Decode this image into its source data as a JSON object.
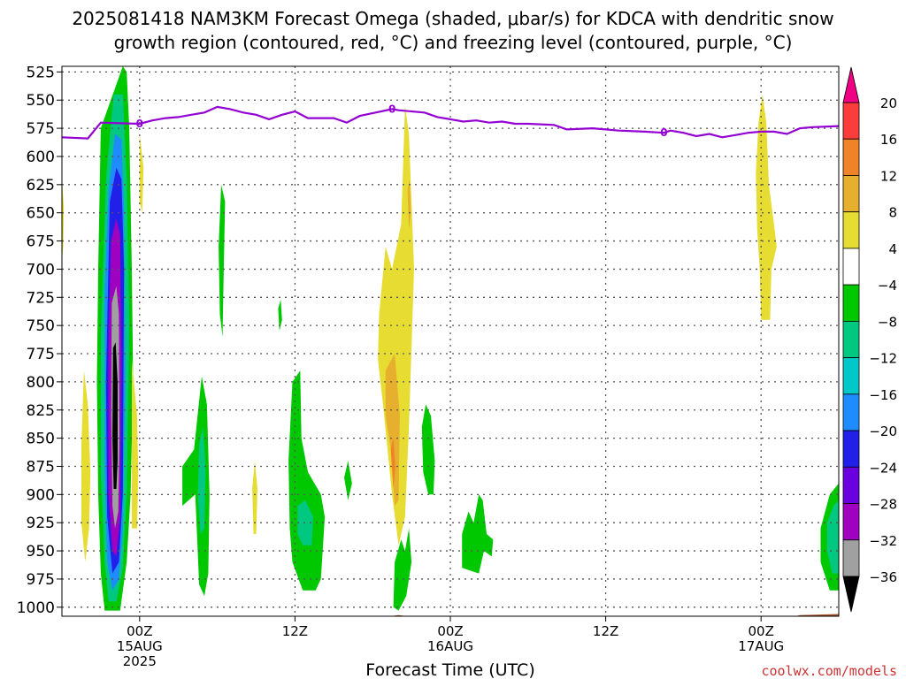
{
  "title_line1": "2025081418 NAM3KM Forecast Omega (shaded, μbar/s) for KDCA with dendritic snow",
  "title_line2": "growth region (contoured, red, °C) and freezing level (contoured, purple, °C)",
  "credit": "coolwx.com/models",
  "chart_data": {
    "type": "heatmap",
    "xlabel": "Forecast Time (UTC)",
    "x_ticks": [
      {
        "hour": 6,
        "lines": [
          "00Z",
          "15AUG",
          "2025"
        ]
      },
      {
        "hour": 18,
        "lines": [
          "12Z"
        ]
      },
      {
        "hour": 30,
        "lines": [
          "00Z",
          "16AUG"
        ]
      },
      {
        "hour": 42,
        "lines": [
          "12Z"
        ]
      },
      {
        "hour": 54,
        "lines": [
          "00Z",
          "17AUG"
        ]
      }
    ],
    "x_range_hours": [
      0,
      60
    ],
    "y_ticks": [
      525,
      550,
      575,
      600,
      625,
      650,
      675,
      700,
      725,
      750,
      775,
      800,
      825,
      850,
      875,
      900,
      925,
      950,
      975,
      1000
    ],
    "y_range_hpa": [
      520,
      1008
    ],
    "grid": true,
    "colorbar": {
      "levels": [
        -36,
        -32,
        -28,
        -24,
        -20,
        -16,
        -12,
        -8,
        -4,
        4,
        8,
        12,
        16,
        20
      ],
      "colors": [
        "#000000",
        "#a0a0a0",
        "#a000c0",
        "#6a00e0",
        "#2020e8",
        "#1e8cff",
        "#00c8c8",
        "#00c880",
        "#00c800",
        "#ffffff",
        "#e6dc32",
        "#e6af2d",
        "#f08228",
        "#fa3c3c",
        "#f00082"
      ]
    },
    "freezing_level": {
      "label": "0",
      "label_hours": [
        6,
        25.5,
        46.5
      ],
      "points": [
        [
          0,
          583
        ],
        [
          2,
          584
        ],
        [
          3,
          570
        ],
        [
          6,
          571
        ],
        [
          7,
          568
        ],
        [
          8,
          566
        ],
        [
          9,
          565
        ],
        [
          10,
          563
        ],
        [
          11,
          561
        ],
        [
          12,
          556
        ],
        [
          13,
          558
        ],
        [
          14,
          561
        ],
        [
          15,
          563
        ],
        [
          16,
          567
        ],
        [
          17,
          563
        ],
        [
          18,
          560
        ],
        [
          19,
          566
        ],
        [
          20,
          566
        ],
        [
          21,
          566
        ],
        [
          22,
          570
        ],
        [
          23,
          564
        ],
        [
          25.5,
          558
        ],
        [
          26,
          559
        ],
        [
          28,
          561
        ],
        [
          29,
          565
        ],
        [
          30,
          567
        ],
        [
          31,
          569
        ],
        [
          32,
          568
        ],
        [
          33,
          570
        ],
        [
          34,
          569
        ],
        [
          35,
          571
        ],
        [
          36,
          571
        ],
        [
          38,
          572
        ],
        [
          39,
          576
        ],
        [
          41,
          575
        ],
        [
          43,
          577
        ],
        [
          45,
          578
        ],
        [
          46.5,
          579
        ],
        [
          47,
          577
        ],
        [
          48,
          579
        ],
        [
          49,
          582
        ],
        [
          50,
          580
        ],
        [
          51,
          583
        ],
        [
          52,
          581
        ],
        [
          53,
          579
        ],
        [
          54,
          578
        ],
        [
          55,
          578
        ],
        [
          56,
          580
        ],
        [
          57,
          575
        ],
        [
          58,
          574
        ],
        [
          60,
          573
        ]
      ]
    },
    "omega_regions": [
      {
        "value": -4,
        "pts": [
          [
            3.0,
            575
          ],
          [
            4.7,
            520
          ],
          [
            5.0,
            525
          ],
          [
            5.2,
            575
          ],
          [
            5.4,
            700
          ],
          [
            5.5,
            800
          ],
          [
            5.3,
            900
          ],
          [
            5.0,
            960
          ],
          [
            4.5,
            1003
          ],
          [
            3.3,
            1003
          ],
          [
            3.0,
            970
          ],
          [
            2.8,
            900
          ],
          [
            2.7,
            800
          ],
          [
            2.8,
            700
          ]
        ]
      },
      {
        "value": -8,
        "pts": [
          [
            3.4,
            620
          ],
          [
            4.0,
            545
          ],
          [
            4.7,
            545
          ],
          [
            5.0,
            620
          ],
          [
            5.2,
            750
          ],
          [
            5.0,
            900
          ],
          [
            4.7,
            965
          ],
          [
            4.2,
            995
          ],
          [
            3.6,
            995
          ],
          [
            3.3,
            960
          ],
          [
            3.0,
            880
          ],
          [
            3.0,
            760
          ]
        ]
      },
      {
        "value": -16,
        "pts": [
          [
            3.6,
            630
          ],
          [
            4.1,
            580
          ],
          [
            4.6,
            585
          ],
          [
            4.8,
            650
          ],
          [
            4.9,
            800
          ],
          [
            4.7,
            930
          ],
          [
            4.4,
            975
          ],
          [
            3.9,
            985
          ],
          [
            3.5,
            960
          ],
          [
            3.3,
            880
          ],
          [
            3.3,
            720
          ]
        ]
      },
      {
        "value": -20,
        "pts": [
          [
            3.7,
            640
          ],
          [
            4.2,
            610
          ],
          [
            4.6,
            620
          ],
          [
            4.8,
            700
          ],
          [
            4.7,
            900
          ],
          [
            4.4,
            960
          ],
          [
            3.9,
            970
          ],
          [
            3.5,
            920
          ],
          [
            3.4,
            800
          ]
        ]
      },
      {
        "value": -28,
        "pts": [
          [
            3.8,
            675
          ],
          [
            4.2,
            655
          ],
          [
            4.5,
            670
          ],
          [
            4.6,
            780
          ],
          [
            4.5,
            920
          ],
          [
            4.2,
            955
          ],
          [
            3.9,
            950
          ],
          [
            3.6,
            900
          ],
          [
            3.6,
            760
          ]
        ]
      },
      {
        "value": -32,
        "pts": [
          [
            3.85,
            730
          ],
          [
            4.2,
            715
          ],
          [
            4.4,
            740
          ],
          [
            4.45,
            850
          ],
          [
            4.35,
            915
          ],
          [
            4.1,
            930
          ],
          [
            3.9,
            910
          ],
          [
            3.8,
            830
          ]
        ]
      },
      {
        "value": -36,
        "pts": [
          [
            3.95,
            770
          ],
          [
            4.15,
            765
          ],
          [
            4.3,
            800
          ],
          [
            4.3,
            870
          ],
          [
            4.2,
            895
          ],
          [
            4.0,
            895
          ],
          [
            3.9,
            850
          ]
        ]
      },
      {
        "value": 4,
        "pts": [
          [
            1.5,
            855
          ],
          [
            1.7,
            790
          ],
          [
            2.0,
            820
          ],
          [
            2.2,
            880
          ],
          [
            2.1,
            930
          ],
          [
            1.8,
            960
          ],
          [
            1.5,
            925
          ]
        ]
      },
      {
        "value": 4,
        "pts": [
          [
            5.4,
            780
          ],
          [
            5.8,
            830
          ],
          [
            5.9,
            880
          ],
          [
            5.8,
            930
          ],
          [
            5.4,
            930
          ]
        ]
      },
      {
        "value": 4,
        "pts": [
          [
            6.0,
            580
          ],
          [
            6.3,
            610
          ],
          [
            6.2,
            650
          ],
          [
            6.0,
            640
          ]
        ]
      },
      {
        "value": 4,
        "pts": [
          [
            0.0,
            620
          ],
          [
            0.15,
            645
          ],
          [
            0.1,
            680
          ],
          [
            0.0,
            690
          ]
        ]
      },
      {
        "value": -4,
        "pts": [
          [
            12.3,
            625
          ],
          [
            12.6,
            640
          ],
          [
            12.5,
            700
          ],
          [
            12.4,
            760
          ],
          [
            12.2,
            740
          ],
          [
            12.1,
            680
          ]
        ]
      },
      {
        "value": -4,
        "pts": [
          [
            9.3,
            875
          ],
          [
            10.2,
            860
          ],
          [
            10.8,
            795
          ],
          [
            11.2,
            820
          ],
          [
            11.4,
            900
          ],
          [
            11.3,
            970
          ],
          [
            11.0,
            990
          ],
          [
            10.6,
            980
          ],
          [
            10.3,
            900
          ],
          [
            9.3,
            910
          ]
        ]
      },
      {
        "value": -8,
        "pts": [
          [
            10.6,
            855
          ],
          [
            10.9,
            840
          ],
          [
            11.1,
            880
          ],
          [
            11.0,
            930
          ],
          [
            10.7,
            935
          ],
          [
            10.5,
            900
          ]
        ]
      },
      {
        "value": 4,
        "pts": [
          [
            14.7,
            895
          ],
          [
            14.9,
            870
          ],
          [
            15.1,
            895
          ],
          [
            15.0,
            935
          ],
          [
            14.8,
            935
          ]
        ]
      },
      {
        "value": -4,
        "pts": [
          [
            16.7,
            735
          ],
          [
            16.9,
            727
          ],
          [
            17.0,
            745
          ],
          [
            16.8,
            755
          ]
        ]
      },
      {
        "value": -4,
        "pts": [
          [
            17.5,
            870
          ],
          [
            17.8,
            800
          ],
          [
            18.4,
            790
          ],
          [
            18.5,
            850
          ],
          [
            19.0,
            880
          ],
          [
            20.0,
            900
          ],
          [
            20.3,
            920
          ],
          [
            20.0,
            975
          ],
          [
            19.6,
            985
          ],
          [
            18.6,
            985
          ],
          [
            17.8,
            960
          ],
          [
            17.6,
            930
          ]
        ]
      },
      {
        "value": -8,
        "pts": [
          [
            18.2,
            910
          ],
          [
            18.8,
            905
          ],
          [
            19.4,
            920
          ],
          [
            19.3,
            945
          ],
          [
            18.6,
            945
          ],
          [
            18.2,
            935
          ]
        ]
      },
      {
        "value": -4,
        "pts": [
          [
            21.8,
            885
          ],
          [
            22.1,
            870
          ],
          [
            22.4,
            890
          ],
          [
            22.1,
            905
          ]
        ]
      },
      {
        "value": 4,
        "pts": [
          [
            24.5,
            740
          ],
          [
            25.0,
            680
          ],
          [
            25.5,
            700
          ],
          [
            26.2,
            660
          ],
          [
            26.5,
            555
          ],
          [
            26.8,
            580
          ],
          [
            27.2,
            700
          ],
          [
            26.8,
            840
          ],
          [
            26.5,
            920
          ],
          [
            26.0,
            945
          ],
          [
            25.5,
            900
          ],
          [
            24.8,
            820
          ],
          [
            24.4,
            780
          ]
        ]
      },
      {
        "value": 8,
        "pts": [
          [
            25.0,
            790
          ],
          [
            25.7,
            775
          ],
          [
            26.1,
            830
          ],
          [
            26.0,
            905
          ],
          [
            25.7,
            910
          ],
          [
            25.4,
            860
          ],
          [
            25.0,
            830
          ]
        ]
      },
      {
        "value": 8,
        "pts": [
          [
            26.7,
            630
          ],
          [
            26.85,
            620
          ],
          [
            26.95,
            650
          ],
          [
            26.8,
            665
          ]
        ]
      },
      {
        "value": 12,
        "pts": [
          [
            25.4,
            860
          ],
          [
            25.6,
            850
          ],
          [
            25.75,
            875
          ],
          [
            25.6,
            895
          ]
        ]
      },
      {
        "value": -4,
        "pts": [
          [
            25.7,
            960
          ],
          [
            26.2,
            940
          ],
          [
            26.5,
            950
          ],
          [
            26.8,
            930
          ],
          [
            27.0,
            960
          ],
          [
            26.6,
            990
          ],
          [
            26.0,
            1003
          ],
          [
            25.6,
            1000
          ]
        ]
      },
      {
        "value": -4,
        "pts": [
          [
            27.8,
            840
          ],
          [
            28.1,
            820
          ],
          [
            28.5,
            830
          ],
          [
            28.8,
            870
          ],
          [
            28.7,
            900
          ],
          [
            28.3,
            900
          ],
          [
            27.9,
            880
          ]
        ]
      },
      {
        "value": -4,
        "pts": [
          [
            30.9,
            935
          ],
          [
            31.4,
            915
          ],
          [
            31.8,
            925
          ],
          [
            32.2,
            900
          ],
          [
            32.5,
            905
          ],
          [
            32.8,
            935
          ],
          [
            33.3,
            940
          ],
          [
            33.2,
            955
          ],
          [
            32.6,
            950
          ],
          [
            32.2,
            970
          ],
          [
            30.9,
            965
          ]
        ]
      },
      {
        "value": 4,
        "pts": [
          [
            53.6,
            615
          ],
          [
            53.8,
            570
          ],
          [
            54.1,
            545
          ],
          [
            54.4,
            570
          ],
          [
            54.6,
            625
          ],
          [
            55.0,
            660
          ],
          [
            55.2,
            680
          ],
          [
            54.8,
            700
          ],
          [
            54.7,
            745
          ],
          [
            54.0,
            745
          ],
          [
            53.9,
            700
          ],
          [
            53.7,
            665
          ]
        ]
      },
      {
        "value": -4,
        "pts": [
          [
            58.6,
            930
          ],
          [
            59.3,
            900
          ],
          [
            60.0,
            890
          ],
          [
            60.0,
            985
          ],
          [
            59.3,
            985
          ],
          [
            58.6,
            960
          ]
        ]
      },
      {
        "value": -8,
        "pts": [
          [
            59.1,
            925
          ],
          [
            59.6,
            910
          ],
          [
            60.0,
            905
          ],
          [
            60.0,
            970
          ],
          [
            59.5,
            970
          ],
          [
            59.1,
            950
          ]
        ]
      }
    ],
    "terrain": {
      "color": "#a0522d",
      "points": [
        [
          0,
          1008
        ],
        [
          18,
          1008
        ],
        [
          19,
          1010
        ],
        [
          24,
          1010
        ],
        [
          26,
          1007
        ],
        [
          28,
          1010
        ],
        [
          42,
          1010
        ],
        [
          44,
          1011
        ],
        [
          47,
          1011
        ],
        [
          50,
          1009
        ],
        [
          52,
          1008
        ],
        [
          56,
          1010
        ],
        [
          57,
          1007
        ],
        [
          60,
          1006
        ]
      ]
    }
  }
}
